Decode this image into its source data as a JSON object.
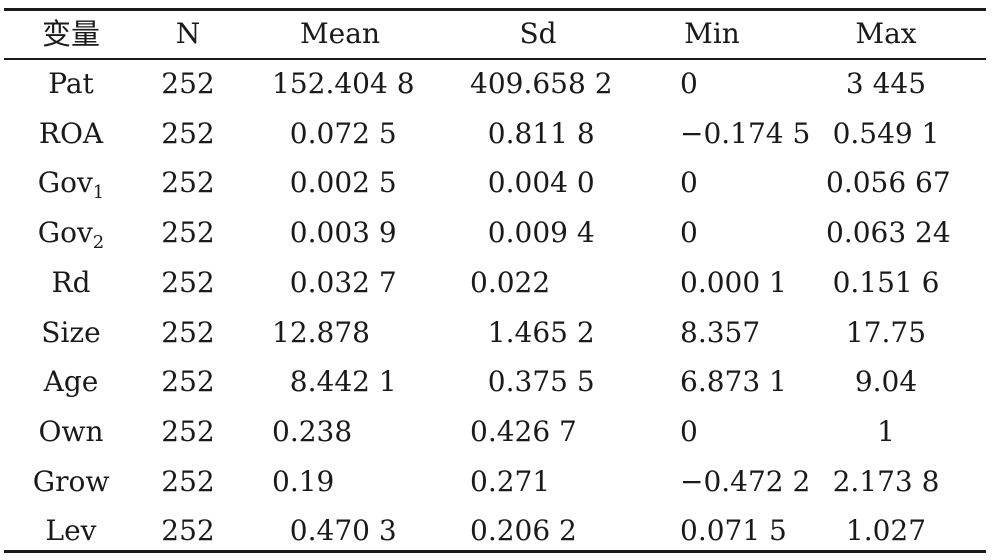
{
  "table": {
    "headers": [
      "变量",
      "N",
      "Mean",
      "Sd",
      "Min",
      "Max"
    ],
    "rows": [
      {
        "var": "Pat",
        "sub": "",
        "n": "252",
        "mean": "152.404 8",
        "sd": "409.658 2",
        "min": "0",
        "max": "3 445"
      },
      {
        "var": "ROA",
        "sub": "",
        "n": "252",
        "mean": "  0.072 5",
        "sd": "  0.811 8",
        "min": "−0.174 5",
        "max": "0.549 1"
      },
      {
        "var": "Gov",
        "sub": "1",
        "n": "252",
        "mean": "  0.002 5",
        "sd": "  0.004 0",
        "min": "0",
        "max": "0.056 67"
      },
      {
        "var": "Gov",
        "sub": "2",
        "n": "252",
        "mean": "  0.003 9",
        "sd": "  0.009 4",
        "min": "0",
        "max": "0.063 24"
      },
      {
        "var": "Rd",
        "sub": "",
        "n": "252",
        "mean": "  0.032 7",
        "sd": "0.022",
        "min": "0.000 1",
        "max": "0.151 6"
      },
      {
        "var": "Size",
        "sub": "",
        "n": "252",
        "mean": "12.878",
        "sd": "  1.465 2",
        "min": "8.357",
        "max": "17.75"
      },
      {
        "var": "Age",
        "sub": "",
        "n": "252",
        "mean": "  8.442 1",
        "sd": "  0.375 5",
        "min": "6.873 1",
        "max": "9.04"
      },
      {
        "var": "Own",
        "sub": "",
        "n": "252",
        "mean": "0.238",
        "sd": "0.426 7",
        "min": "0",
        "max": "1"
      },
      {
        "var": "Grow",
        "sub": "",
        "n": "252",
        "mean": "0.19",
        "sd": "0.271",
        "min": "−0.472 2",
        "max": "2.173 8"
      },
      {
        "var": "Lev",
        "sub": "",
        "n": "252",
        "mean": "  0.470 3",
        "sd": "0.206 2",
        "min": "0.071 5",
        "max": "1.027"
      }
    ]
  }
}
